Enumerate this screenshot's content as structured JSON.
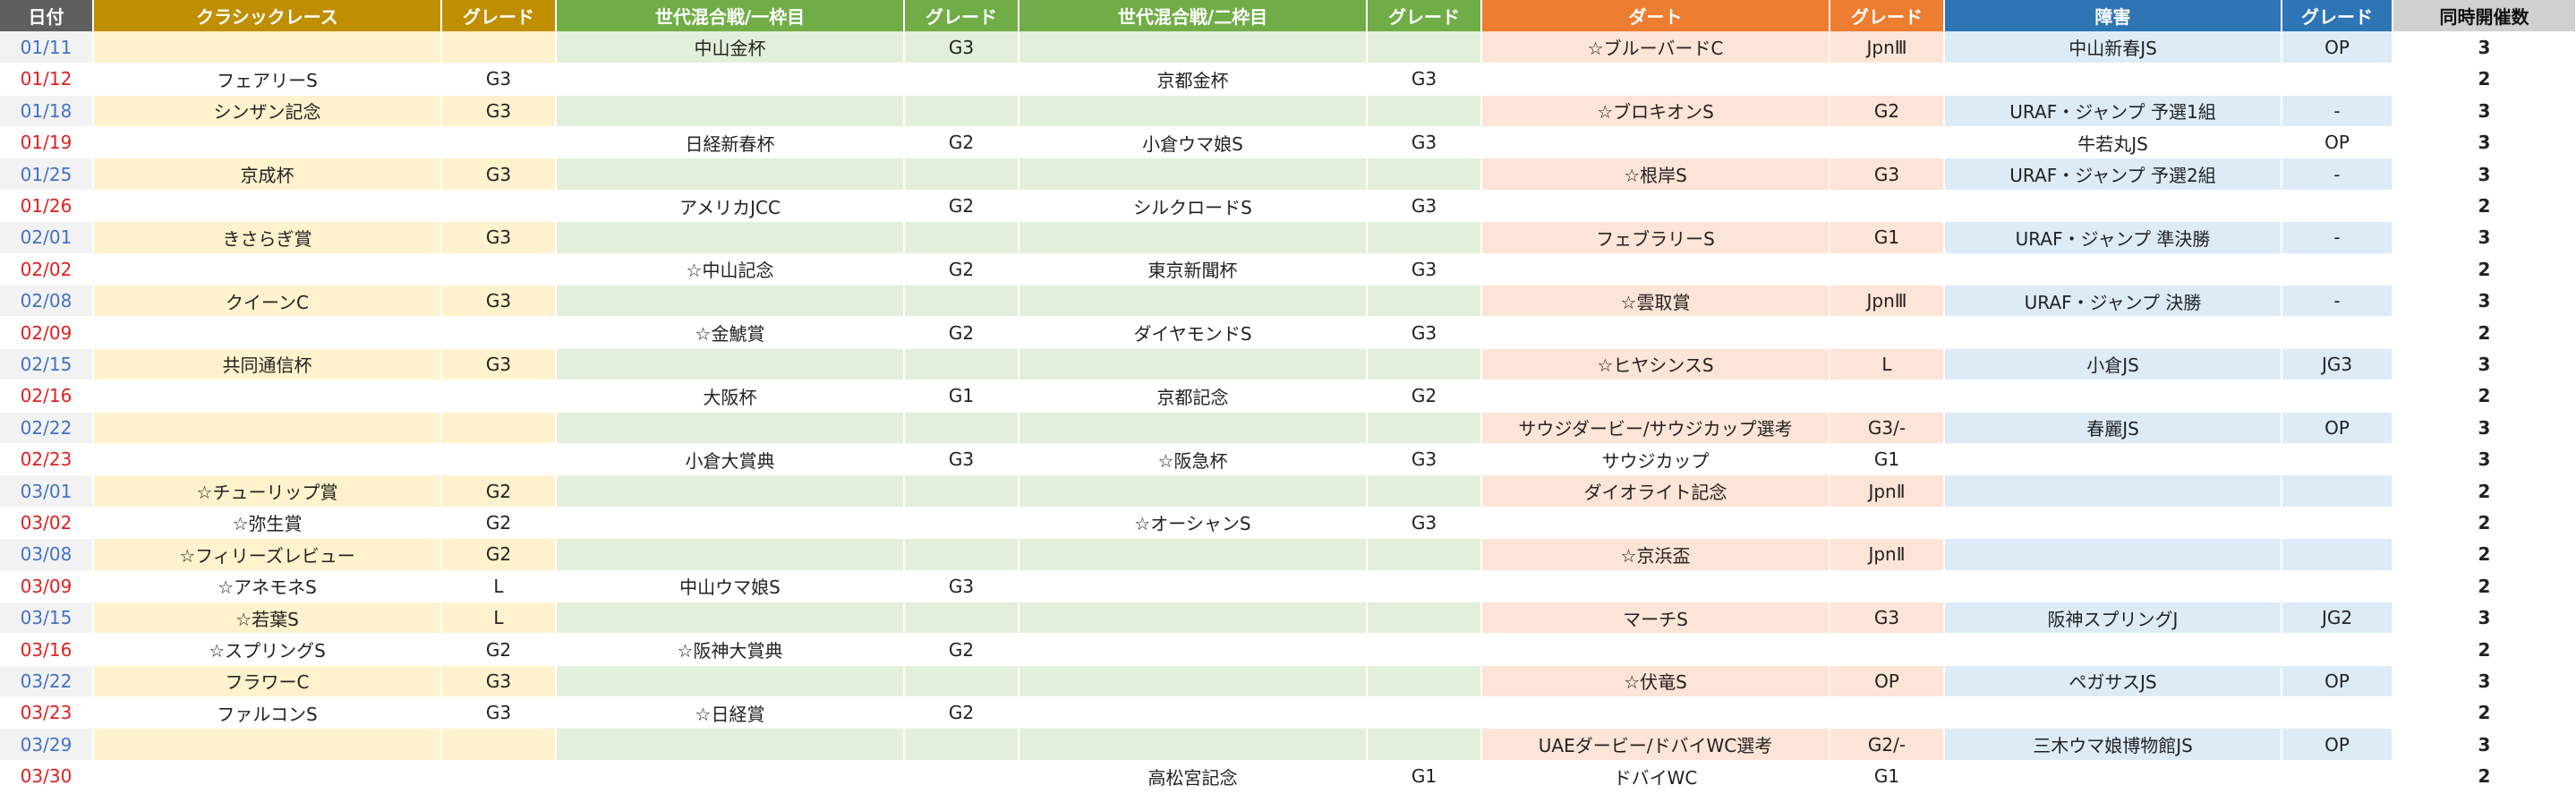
{
  "headers": {
    "date": "日付",
    "classic": "クラシックレース",
    "classic_grade": "グレード",
    "mixed1": "世代混合戦/一枠目",
    "mixed1_grade": "グレード",
    "mixed2": "世代混合戦/二枠目",
    "mixed2_grade": "グレード",
    "dirt": "ダート",
    "dirt_grade": "グレード",
    "jump": "障害",
    "jump_grade": "グレード",
    "count": "同時開催数"
  },
  "rows": [
    {
      "date": "01/11",
      "day": "sat",
      "classic": "",
      "classic_grade": "",
      "mixed1": "中山金杯",
      "mixed1_grade": "G3",
      "mixed2": "",
      "mixed2_grade": "",
      "dirt": "☆ブルーバードC",
      "dirt_grade": "JpnⅢ",
      "jump": "中山新春JS",
      "jump_grade": "OP",
      "count": "3"
    },
    {
      "date": "01/12",
      "day": "sun",
      "classic": "フェアリーS",
      "classic_grade": "G3",
      "mixed1": "",
      "mixed1_grade": "",
      "mixed2": "京都金杯",
      "mixed2_grade": "G3",
      "dirt": "",
      "dirt_grade": "",
      "jump": "",
      "jump_grade": "",
      "count": "2"
    },
    {
      "date": "01/18",
      "day": "sat",
      "classic": "シンザン記念",
      "classic_grade": "G3",
      "mixed1": "",
      "mixed1_grade": "",
      "mixed2": "",
      "mixed2_grade": "",
      "dirt": "☆ブロキオンS",
      "dirt_grade": "G2",
      "jump": "URAF・ジャンプ 予選1組",
      "jump_grade": "-",
      "count": "3"
    },
    {
      "date": "01/19",
      "day": "sun",
      "classic": "",
      "classic_grade": "",
      "mixed1": "日経新春杯",
      "mixed1_grade": "G2",
      "mixed2": "小倉ウマ娘S",
      "mixed2_grade": "G3",
      "dirt": "",
      "dirt_grade": "",
      "jump": "牛若丸JS",
      "jump_grade": "OP",
      "count": "3"
    },
    {
      "date": "01/25",
      "day": "sat",
      "classic": "京成杯",
      "classic_grade": "G3",
      "mixed1": "",
      "mixed1_grade": "",
      "mixed2": "",
      "mixed2_grade": "",
      "dirt": "☆根岸S",
      "dirt_grade": "G3",
      "jump": "URAF・ジャンプ 予選2組",
      "jump_grade": "-",
      "count": "3"
    },
    {
      "date": "01/26",
      "day": "sun",
      "classic": "",
      "classic_grade": "",
      "mixed1": "アメリカJCC",
      "mixed1_grade": "G2",
      "mixed2": "シルクロードS",
      "mixed2_grade": "G3",
      "dirt": "",
      "dirt_grade": "",
      "jump": "",
      "jump_grade": "",
      "count": "2"
    },
    {
      "date": "02/01",
      "day": "sat",
      "classic": "きさらぎ賞",
      "classic_grade": "G3",
      "mixed1": "",
      "mixed1_grade": "",
      "mixed2": "",
      "mixed2_grade": "",
      "dirt": "フェブラリーS",
      "dirt_grade": "G1",
      "jump": "URAF・ジャンプ 準決勝",
      "jump_grade": "-",
      "count": "3"
    },
    {
      "date": "02/02",
      "day": "sun",
      "classic": "",
      "classic_grade": "",
      "mixed1": "☆中山記念",
      "mixed1_grade": "G2",
      "mixed2": "東京新聞杯",
      "mixed2_grade": "G3",
      "dirt": "",
      "dirt_grade": "",
      "jump": "",
      "jump_grade": "",
      "count": "2"
    },
    {
      "date": "02/08",
      "day": "sat",
      "classic": "クイーンC",
      "classic_grade": "G3",
      "mixed1": "",
      "mixed1_grade": "",
      "mixed2": "",
      "mixed2_grade": "",
      "dirt": "☆雲取賞",
      "dirt_grade": "JpnⅢ",
      "jump": "URAF・ジャンプ 決勝",
      "jump_grade": "-",
      "count": "3"
    },
    {
      "date": "02/09",
      "day": "sun",
      "classic": "",
      "classic_grade": "",
      "mixed1": "☆金鯱賞",
      "mixed1_grade": "G2",
      "mixed2": "ダイヤモンドS",
      "mixed2_grade": "G3",
      "dirt": "",
      "dirt_grade": "",
      "jump": "",
      "jump_grade": "",
      "count": "2"
    },
    {
      "date": "02/15",
      "day": "sat",
      "classic": "共同通信杯",
      "classic_grade": "G3",
      "mixed1": "",
      "mixed1_grade": "",
      "mixed2": "",
      "mixed2_grade": "",
      "dirt": "☆ヒヤシンスS",
      "dirt_grade": "L",
      "jump": "小倉JS",
      "jump_grade": "JG3",
      "count": "3"
    },
    {
      "date": "02/16",
      "day": "sun",
      "classic": "",
      "classic_grade": "",
      "mixed1": "大阪杯",
      "mixed1_grade": "G1",
      "mixed2": "京都記念",
      "mixed2_grade": "G2",
      "dirt": "",
      "dirt_grade": "",
      "jump": "",
      "jump_grade": "",
      "count": "2"
    },
    {
      "date": "02/22",
      "day": "sat",
      "classic": "",
      "classic_grade": "",
      "mixed1": "",
      "mixed1_grade": "",
      "mixed2": "",
      "mixed2_grade": "",
      "dirt": "サウジダービー/サウジカップ選考",
      "dirt_grade": "G3/-",
      "jump": "春麗JS",
      "jump_grade": "OP",
      "count": "3"
    },
    {
      "date": "02/23",
      "day": "sun",
      "classic": "",
      "classic_grade": "",
      "mixed1": "小倉大賞典",
      "mixed1_grade": "G3",
      "mixed2": "☆阪急杯",
      "mixed2_grade": "G3",
      "dirt": "サウジカップ",
      "dirt_grade": "G1",
      "jump": "",
      "jump_grade": "",
      "count": "3"
    },
    {
      "date": "03/01",
      "day": "sat",
      "classic": "☆チューリップ賞",
      "classic_grade": "G2",
      "mixed1": "",
      "mixed1_grade": "",
      "mixed2": "",
      "mixed2_grade": "",
      "dirt": "ダイオライト記念",
      "dirt_grade": "JpnⅡ",
      "jump": "",
      "jump_grade": "",
      "count": "2"
    },
    {
      "date": "03/02",
      "day": "sun",
      "classic": "☆弥生賞",
      "classic_grade": "G2",
      "mixed1": "",
      "mixed1_grade": "",
      "mixed2": "☆オーシャンS",
      "mixed2_grade": "G3",
      "dirt": "",
      "dirt_grade": "",
      "jump": "",
      "jump_grade": "",
      "count": "2"
    },
    {
      "date": "03/08",
      "day": "sat",
      "classic": "☆フィリーズレビュー",
      "classic_grade": "G2",
      "mixed1": "",
      "mixed1_grade": "",
      "mixed2": "",
      "mixed2_grade": "",
      "dirt": "☆京浜盃",
      "dirt_grade": "JpnⅡ",
      "jump": "",
      "jump_grade": "",
      "count": "2"
    },
    {
      "date": "03/09",
      "day": "sun",
      "classic": "☆アネモネS",
      "classic_grade": "L",
      "mixed1": "中山ウマ娘S",
      "mixed1_grade": "G3",
      "mixed2": "",
      "mixed2_grade": "",
      "dirt": "",
      "dirt_grade": "",
      "jump": "",
      "jump_grade": "",
      "count": "2"
    },
    {
      "date": "03/15",
      "day": "sat",
      "classic": "☆若葉S",
      "classic_grade": "L",
      "mixed1": "",
      "mixed1_grade": "",
      "mixed2": "",
      "mixed2_grade": "",
      "dirt": "マーチS",
      "dirt_grade": "G3",
      "jump": "阪神スプリングJ",
      "jump_grade": "JG2",
      "count": "3"
    },
    {
      "date": "03/16",
      "day": "sun",
      "classic": "☆スプリングS",
      "classic_grade": "G2",
      "mixed1": "☆阪神大賞典",
      "mixed1_grade": "G2",
      "mixed2": "",
      "mixed2_grade": "",
      "dirt": "",
      "dirt_grade": "",
      "jump": "",
      "jump_grade": "",
      "count": "2"
    },
    {
      "date": "03/22",
      "day": "sat",
      "classic": "フラワーC",
      "classic_grade": "G3",
      "mixed1": "",
      "mixed1_grade": "",
      "mixed2": "",
      "mixed2_grade": "",
      "dirt": "☆伏竜S",
      "dirt_grade": "OP",
      "jump": "ペガサスJS",
      "jump_grade": "OP",
      "count": "3"
    },
    {
      "date": "03/23",
      "day": "sun",
      "classic": "ファルコンS",
      "classic_grade": "G3",
      "mixed1": "☆日経賞",
      "mixed1_grade": "G2",
      "mixed2": "",
      "mixed2_grade": "",
      "dirt": "",
      "dirt_grade": "",
      "jump": "",
      "jump_grade": "",
      "count": "2"
    },
    {
      "date": "03/29",
      "day": "sat",
      "classic": "",
      "classic_grade": "",
      "mixed1": "",
      "mixed1_grade": "",
      "mixed2": "",
      "mixed2_grade": "",
      "dirt": "UAEダービー/ドバイWC選考",
      "dirt_grade": "G2/-",
      "jump": "三木ウマ娘博物館JS",
      "jump_grade": "OP",
      "count": "3"
    },
    {
      "date": "03/30",
      "day": "sun",
      "classic": "",
      "classic_grade": "",
      "mixed1": "",
      "mixed1_grade": "",
      "mixed2": "高松宮記念",
      "mixed2_grade": "G1",
      "dirt": "ドバイWC",
      "dirt_grade": "G1",
      "jump": "",
      "jump_grade": "",
      "count": "2"
    }
  ]
}
